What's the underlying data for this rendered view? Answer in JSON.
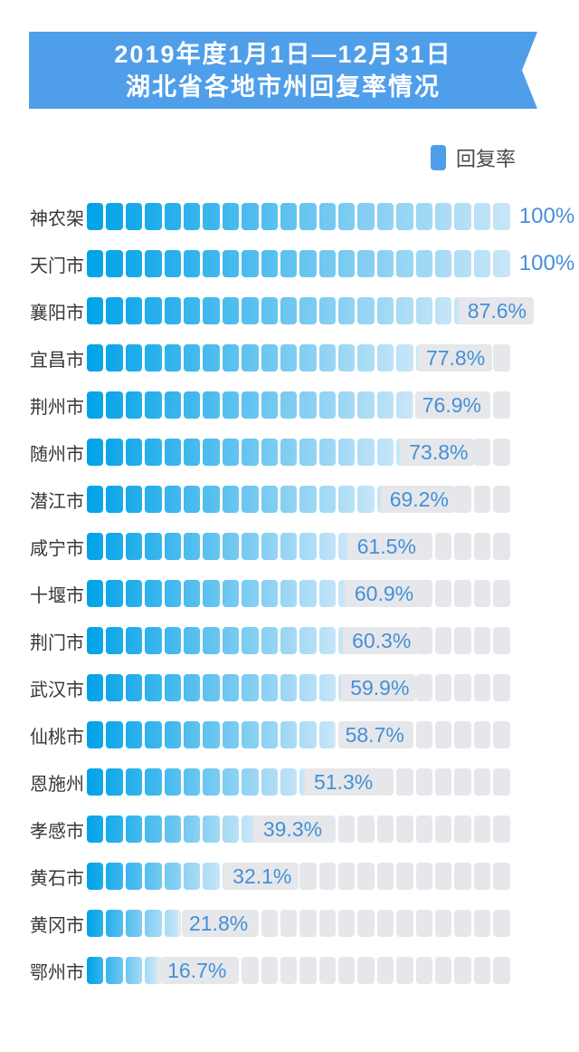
{
  "title": {
    "line1": "2019年度1月1日—12月31日",
    "line2": "湖北省各地市州回复率情况"
  },
  "legend": {
    "label": "回复率"
  },
  "colors": {
    "banner": "#4F9EEA",
    "banner_text": "#FFFFFF",
    "legend_swatch": "#4F9EEA",
    "bar_gradient_start": "#00A2E8",
    "bar_gradient_end": "#C9E6F8",
    "bar_empty": "#E6E7EA",
    "value_text": "#4390D9",
    "city_text": "#383838"
  },
  "chart_data": {
    "type": "bar",
    "orientation": "horizontal",
    "unit": "%",
    "xlim": [
      0,
      100
    ],
    "grid": false,
    "legend_position": "top-right",
    "segments_per_bar": 22,
    "series_name": "回复率",
    "categories": [
      "神农架",
      "天门市",
      "襄阳市",
      "宜昌市",
      "荆州市",
      "随州市",
      "潜江市",
      "咸宁市",
      "十堰市",
      "荆门市",
      "武汉市",
      "仙桃市",
      "恩施州",
      "孝感市",
      "黄石市",
      "黄冈市",
      "鄂州市"
    ],
    "values": [
      100,
      100,
      87.6,
      77.8,
      76.9,
      73.8,
      69.2,
      61.5,
      60.9,
      60.3,
      59.9,
      58.7,
      51.3,
      39.3,
      32.1,
      21.8,
      16.7
    ],
    "value_labels": [
      "100%",
      "100%",
      "87.6%",
      "77.8%",
      "76.9%",
      "73.8%",
      "69.2%",
      "61.5%",
      "60.9%",
      "60.3%",
      "59.9%",
      "58.7%",
      "51.3%",
      "39.3%",
      "32.1%",
      "21.8%",
      "16.7%"
    ]
  }
}
